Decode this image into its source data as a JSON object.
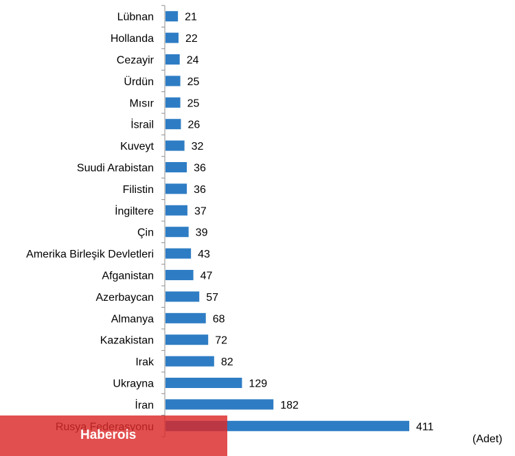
{
  "chart_data": {
    "type": "bar",
    "orientation": "horizontal",
    "categories": [
      "Lübnan",
      "Hollanda",
      "Cezayir",
      "Ürdün",
      "Mısır",
      "İsrail",
      "Kuveyt",
      "Suudi Arabistan",
      "Filistin",
      "İngiltere",
      "Çin",
      "Amerika Birleşik Devletleri",
      "Afganistan",
      "Azerbaycan",
      "Almanya",
      "Kazakistan",
      "Irak",
      "Ukrayna",
      "İran",
      "Rusya Federasyonu"
    ],
    "values": [
      21,
      22,
      24,
      25,
      25,
      26,
      32,
      36,
      36,
      37,
      39,
      43,
      47,
      57,
      68,
      72,
      82,
      129,
      182,
      411
    ],
    "unit_label": "(Adet)",
    "bar_color": "#2e7dc4",
    "axis_color": "#8c8c8c",
    "xlim": [
      0,
      440
    ],
    "grid": false,
    "legend": "none"
  },
  "watermark": {
    "text": "Haberois",
    "color": "#dc2828"
  }
}
